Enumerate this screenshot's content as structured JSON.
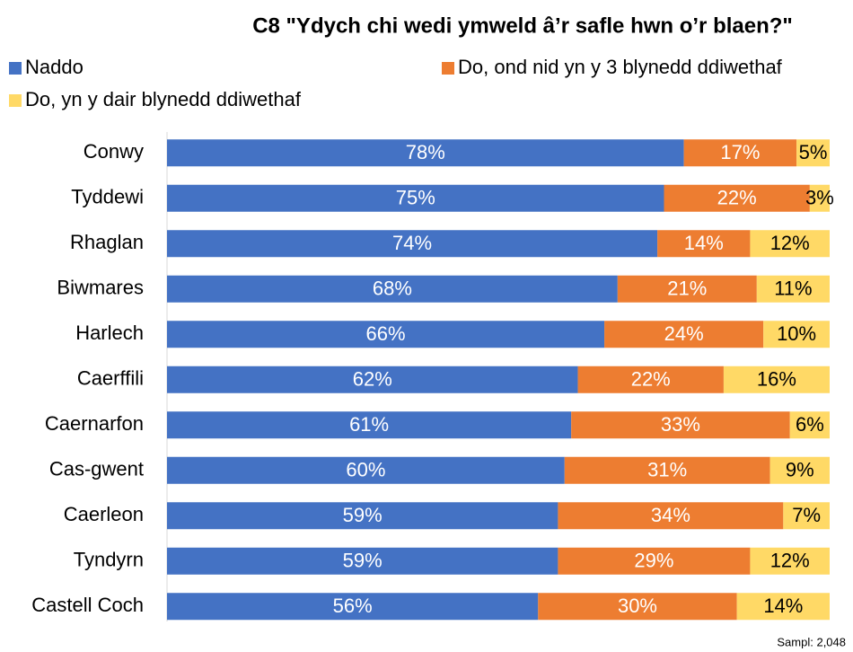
{
  "chart_data": {
    "type": "stacked-bar-horizontal",
    "title": "C8 \"Ydych chi wedi ymweld â’r safle hwn o’r blaen?\"",
    "annotation": "Sampl: 2,048",
    "categories": [
      "Conwy",
      "Tyddewi",
      "Rhaglan",
      "Biwmares",
      "Harlech",
      "Caerffili",
      "Caernarfon",
      "Cas-gwent",
      "Caerleon",
      "Tyndyrn",
      "Castell Coch"
    ],
    "series": [
      {
        "name": "Naddo",
        "color": "#4472c4",
        "label_color": "#ffffff",
        "values": [
          78,
          75,
          74,
          68,
          66,
          62,
          61,
          60,
          59,
          59,
          56
        ],
        "value_labels": [
          "78%",
          "75%",
          "74%",
          "68%",
          "66%",
          "62%",
          "61%",
          "60%",
          "59%",
          "59%",
          "56%"
        ]
      },
      {
        "name": "Do, ond nid yn y 3 blynedd ddiwethaf",
        "color": "#ed7d31",
        "label_color": "#ffffff",
        "values": [
          17,
          22,
          14,
          21,
          24,
          22,
          33,
          31,
          34,
          29,
          30
        ],
        "value_labels": [
          "17%",
          "22%",
          "14%",
          "21%",
          "24%",
          "22%",
          "33%",
          "31%",
          "34%",
          "29%",
          "30%"
        ]
      },
      {
        "name": "Do, yn y dair blynedd ddiwethaf",
        "color": "#ffd966",
        "label_color": "#000000",
        "values": [
          5,
          3,
          12,
          11,
          10,
          16,
          6,
          9,
          7,
          12,
          14
        ],
        "value_labels": [
          "5%",
          "3%",
          "12%",
          "11%",
          "10%",
          "16%",
          "6%",
          "9%",
          "7%",
          "12%",
          "14%"
        ]
      }
    ]
  }
}
